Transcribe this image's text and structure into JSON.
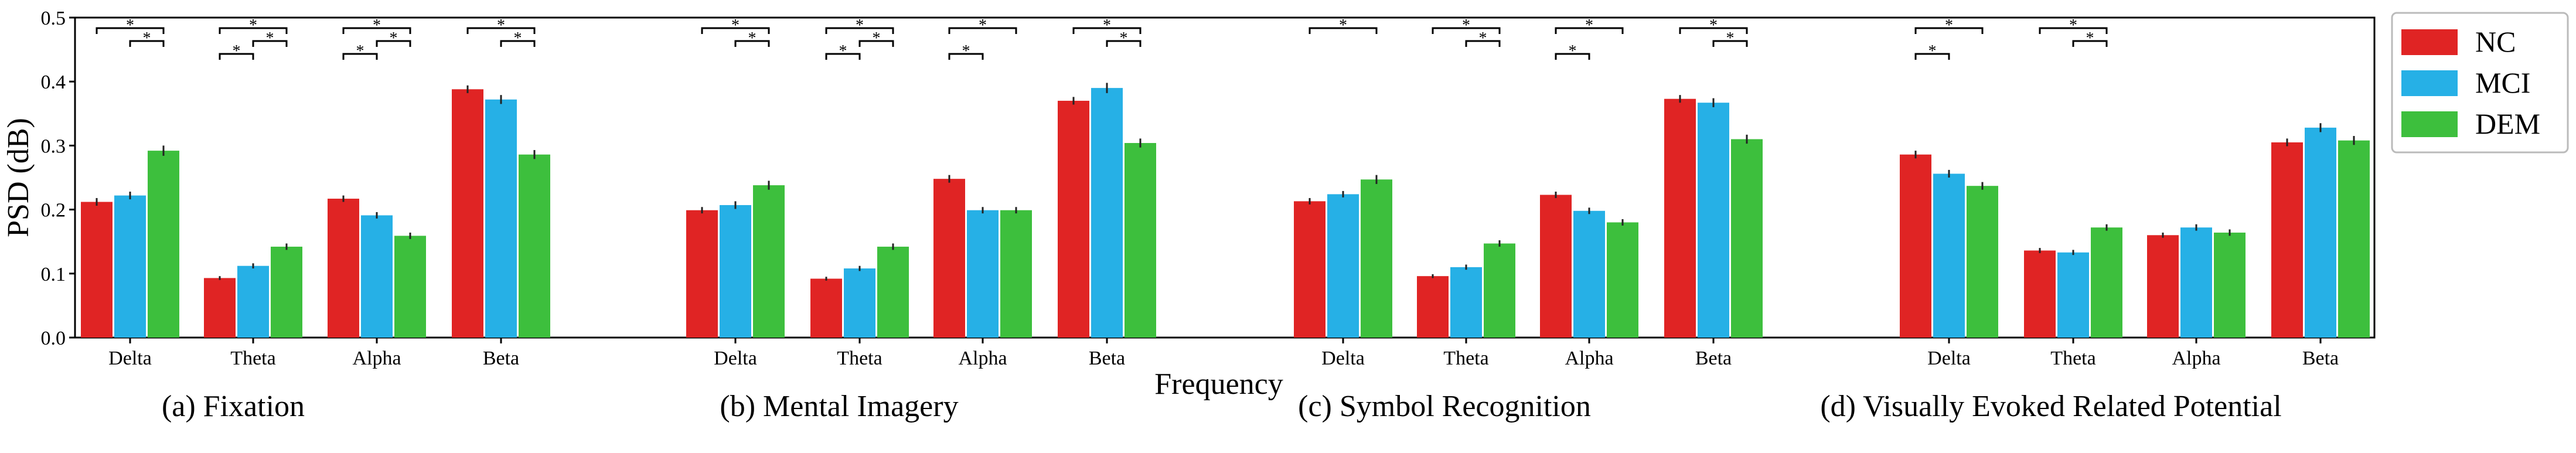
{
  "chart_data": {
    "type": "bar",
    "title": "",
    "xlabel": "Frequency",
    "ylabel": "PSD (dB)",
    "ylim": [
      0,
      0.5
    ],
    "yticks": [
      "0.0",
      "0.1",
      "0.2",
      "0.3",
      "0.4",
      "0.5"
    ],
    "grid": false,
    "legend_position": "outside-right",
    "series": [
      {
        "name": "NC",
        "color": "#e02424"
      },
      {
        "name": "MCI",
        "color": "#26b0e6"
      },
      {
        "name": "DEM",
        "color": "#3dbf3d"
      }
    ],
    "panels": [
      {
        "caption": "(a) Fixation",
        "categories": [
          "Delta",
          "Theta",
          "Alpha",
          "Beta"
        ],
        "values": [
          [
            0.212,
            0.222,
            0.292
          ],
          [
            0.093,
            0.112,
            0.142
          ],
          [
            0.217,
            0.191,
            0.159
          ],
          [
            0.388,
            0.372,
            0.286
          ]
        ],
        "errors": [
          [
            0.006,
            0.006,
            0.008
          ],
          [
            0.003,
            0.004,
            0.005
          ],
          [
            0.005,
            0.005,
            0.005
          ],
          [
            0.006,
            0.007,
            0.007
          ]
        ],
        "significance": [
          {
            "category": "Delta",
            "pair": [
              "NC",
              "DEM"
            ],
            "label": "*"
          },
          {
            "category": "Delta",
            "pair": [
              "MCI",
              "DEM"
            ],
            "label": "*"
          },
          {
            "category": "Theta",
            "pair": [
              "NC",
              "DEM"
            ],
            "label": "*"
          },
          {
            "category": "Theta",
            "pair": [
              "MCI",
              "DEM"
            ],
            "label": "*"
          },
          {
            "category": "Theta",
            "pair": [
              "NC",
              "MCI"
            ],
            "label": "*"
          },
          {
            "category": "Alpha",
            "pair": [
              "NC",
              "DEM"
            ],
            "label": "*"
          },
          {
            "category": "Alpha",
            "pair": [
              "MCI",
              "DEM"
            ],
            "label": "*"
          },
          {
            "category": "Alpha",
            "pair": [
              "NC",
              "MCI"
            ],
            "label": "*"
          },
          {
            "category": "Beta",
            "pair": [
              "NC",
              "DEM"
            ],
            "label": "*"
          },
          {
            "category": "Beta",
            "pair": [
              "MCI",
              "DEM"
            ],
            "label": "*"
          }
        ]
      },
      {
        "caption": "(b) Mental Imagery",
        "categories": [
          "Delta",
          "Theta",
          "Alpha",
          "Beta"
        ],
        "values": [
          [
            0.199,
            0.207,
            0.238
          ],
          [
            0.092,
            0.108,
            0.142
          ],
          [
            0.248,
            0.199,
            0.199
          ],
          [
            0.37,
            0.39,
            0.304
          ]
        ],
        "errors": [
          [
            0.005,
            0.006,
            0.007
          ],
          [
            0.003,
            0.004,
            0.005
          ],
          [
            0.006,
            0.005,
            0.005
          ],
          [
            0.006,
            0.008,
            0.007
          ]
        ],
        "significance": [
          {
            "category": "Delta",
            "pair": [
              "NC",
              "DEM"
            ],
            "label": "*"
          },
          {
            "category": "Delta",
            "pair": [
              "MCI",
              "DEM"
            ],
            "label": "*"
          },
          {
            "category": "Theta",
            "pair": [
              "NC",
              "DEM"
            ],
            "label": "*"
          },
          {
            "category": "Theta",
            "pair": [
              "MCI",
              "DEM"
            ],
            "label": "*"
          },
          {
            "category": "Theta",
            "pair": [
              "NC",
              "MCI"
            ],
            "label": "*"
          },
          {
            "category": "Alpha",
            "pair": [
              "NC",
              "DEM"
            ],
            "label": "*"
          },
          {
            "category": "Alpha",
            "pair": [
              "NC",
              "MCI"
            ],
            "label": "*"
          },
          {
            "category": "Beta",
            "pair": [
              "NC",
              "DEM"
            ],
            "label": "*"
          },
          {
            "category": "Beta",
            "pair": [
              "MCI",
              "DEM"
            ],
            "label": "*"
          }
        ]
      },
      {
        "caption": "(c) Symbol Recognition",
        "categories": [
          "Delta",
          "Theta",
          "Alpha",
          "Beta"
        ],
        "values": [
          [
            0.213,
            0.224,
            0.247
          ],
          [
            0.096,
            0.11,
            0.147
          ],
          [
            0.223,
            0.198,
            0.18
          ],
          [
            0.373,
            0.367,
            0.31
          ]
        ],
        "errors": [
          [
            0.005,
            0.005,
            0.007
          ],
          [
            0.003,
            0.004,
            0.005
          ],
          [
            0.005,
            0.005,
            0.005
          ],
          [
            0.006,
            0.007,
            0.007
          ]
        ],
        "significance": [
          {
            "category": "Delta",
            "pair": [
              "NC",
              "DEM"
            ],
            "label": "*"
          },
          {
            "category": "Theta",
            "pair": [
              "NC",
              "DEM"
            ],
            "label": "*"
          },
          {
            "category": "Theta",
            "pair": [
              "MCI",
              "DEM"
            ],
            "label": "*"
          },
          {
            "category": "Alpha",
            "pair": [
              "NC",
              "DEM"
            ],
            "label": "*"
          },
          {
            "category": "Alpha",
            "pair": [
              "NC",
              "MCI"
            ],
            "label": "*"
          },
          {
            "category": "Beta",
            "pair": [
              "NC",
              "DEM"
            ],
            "label": "*"
          },
          {
            "category": "Beta",
            "pair": [
              "MCI",
              "DEM"
            ],
            "label": "*"
          }
        ]
      },
      {
        "caption": "(d) Visually Evoked Related Potential",
        "categories": [
          "Delta",
          "Theta",
          "Alpha",
          "Beta"
        ],
        "values": [
          [
            0.286,
            0.256,
            0.237
          ],
          [
            0.136,
            0.133,
            0.172
          ],
          [
            0.16,
            0.172,
            0.164
          ],
          [
            0.305,
            0.328,
            0.308
          ]
        ],
        "errors": [
          [
            0.006,
            0.006,
            0.006
          ],
          [
            0.004,
            0.004,
            0.005
          ],
          [
            0.004,
            0.005,
            0.005
          ],
          [
            0.006,
            0.007,
            0.007
          ]
        ],
        "significance": [
          {
            "category": "Delta",
            "pair": [
              "NC",
              "DEM"
            ],
            "label": "*"
          },
          {
            "category": "Delta",
            "pair": [
              "NC",
              "MCI"
            ],
            "label": "*"
          },
          {
            "category": "Theta",
            "pair": [
              "NC",
              "DEM"
            ],
            "label": "*"
          },
          {
            "category": "Theta",
            "pair": [
              "MCI",
              "DEM"
            ],
            "label": "*"
          }
        ]
      }
    ]
  }
}
